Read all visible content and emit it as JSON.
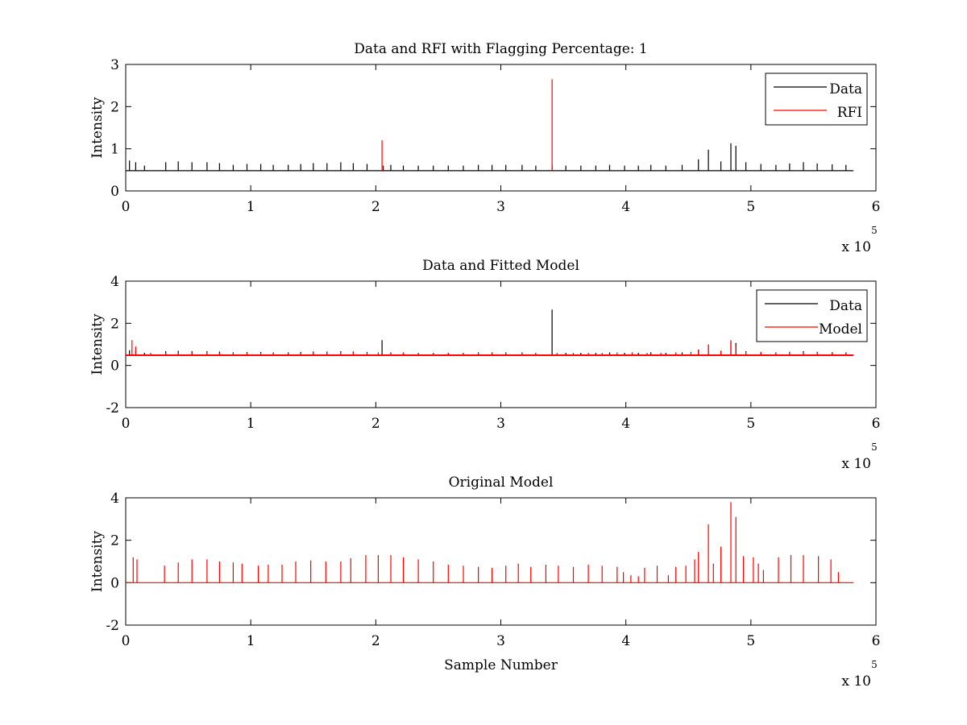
{
  "figure": {
    "background": "#ffffff"
  },
  "chart_data": [
    {
      "type": "line",
      "title": "Data and RFI with Flagging Percentage: 1",
      "xlabel": "",
      "ylabel": "Intensity",
      "xlim": [
        0,
        600000
      ],
      "ylim": [
        0,
        3
      ],
      "xticks": [
        0,
        1,
        2,
        3,
        4,
        5,
        6
      ],
      "yticks": [
        0,
        1,
        2,
        3
      ],
      "x_multiplier": "x 10",
      "x_multiplier_exp": "5",
      "legend_position": "top-right",
      "series": [
        {
          "name": "Data",
          "color": "#000000",
          "baseline": 0.48,
          "end_x": 582000,
          "spikes": [
            [
              3000,
              0.72
            ],
            [
              8000,
              0.68
            ],
            [
              15000,
              0.6
            ],
            [
              32000,
              0.68
            ],
            [
              42000,
              0.7
            ],
            [
              53000,
              0.68
            ],
            [
              65000,
              0.68
            ],
            [
              75000,
              0.66
            ],
            [
              86000,
              0.62
            ],
            [
              97000,
              0.64
            ],
            [
              108000,
              0.64
            ],
            [
              118000,
              0.62
            ],
            [
              130000,
              0.62
            ],
            [
              140000,
              0.64
            ],
            [
              150000,
              0.66
            ],
            [
              161000,
              0.66
            ],
            [
              172000,
              0.68
            ],
            [
              182000,
              0.66
            ],
            [
              193000,
              0.64
            ],
            [
              206000,
              0.6
            ],
            [
              212000,
              0.62
            ],
            [
              222000,
              0.6
            ],
            [
              234000,
              0.6
            ],
            [
              246000,
              0.6
            ],
            [
              258000,
              0.6
            ],
            [
              270000,
              0.6
            ],
            [
              282000,
              0.62
            ],
            [
              293000,
              0.62
            ],
            [
              304000,
              0.62
            ],
            [
              317000,
              0.62
            ],
            [
              328000,
              0.6
            ],
            [
              341000,
              0.62
            ],
            [
              352000,
              0.6
            ],
            [
              364000,
              0.6
            ],
            [
              376000,
              0.6
            ],
            [
              387000,
              0.62
            ],
            [
              399000,
              0.6
            ],
            [
              410000,
              0.6
            ],
            [
              420000,
              0.62
            ],
            [
              432000,
              0.6
            ],
            [
              445000,
              0.62
            ],
            [
              458000,
              0.75
            ],
            [
              466000,
              0.98
            ],
            [
              476000,
              0.7
            ],
            [
              484000,
              1.13
            ],
            [
              488000,
              1.07
            ],
            [
              496000,
              0.68
            ],
            [
              508000,
              0.64
            ],
            [
              520000,
              0.62
            ],
            [
              531000,
              0.65
            ],
            [
              542000,
              0.68
            ],
            [
              553000,
              0.65
            ],
            [
              565000,
              0.63
            ],
            [
              576000,
              0.62
            ]
          ]
        },
        {
          "name": "RFI",
          "color": "#ff0000",
          "spikes": [
            [
              205000,
              1.2
            ],
            [
              341000,
              2.65
            ]
          ]
        }
      ]
    },
    {
      "type": "line",
      "title": "Data and Fitted Model",
      "xlabel": "",
      "ylabel": "Intensity",
      "xlim": [
        0,
        600000
      ],
      "ylim": [
        -2,
        4
      ],
      "xticks": [
        0,
        1,
        2,
        3,
        4,
        5,
        6
      ],
      "yticks": [
        -2,
        0,
        2,
        4
      ],
      "x_multiplier": "x 10",
      "x_multiplier_exp": "5",
      "legend_position": "top-right",
      "series": [
        {
          "name": "Data",
          "color": "#000000",
          "baseline": 0.48,
          "end_x": 582000,
          "spikes": [
            [
              3000,
              0.72
            ],
            [
              8000,
              0.68
            ],
            [
              15000,
              0.6
            ],
            [
              32000,
              0.68
            ],
            [
              42000,
              0.7
            ],
            [
              53000,
              0.68
            ],
            [
              65000,
              0.68
            ],
            [
              75000,
              0.66
            ],
            [
              86000,
              0.62
            ],
            [
              97000,
              0.64
            ],
            [
              108000,
              0.64
            ],
            [
              118000,
              0.62
            ],
            [
              130000,
              0.62
            ],
            [
              140000,
              0.64
            ],
            [
              150000,
              0.66
            ],
            [
              161000,
              0.66
            ],
            [
              172000,
              0.68
            ],
            [
              182000,
              0.66
            ],
            [
              193000,
              0.64
            ],
            [
              205000,
              1.2
            ],
            [
              212000,
              0.62
            ],
            [
              222000,
              0.6
            ],
            [
              234000,
              0.6
            ],
            [
              246000,
              0.6
            ],
            [
              258000,
              0.6
            ],
            [
              270000,
              0.6
            ],
            [
              282000,
              0.62
            ],
            [
              293000,
              0.62
            ],
            [
              304000,
              0.62
            ],
            [
              317000,
              0.62
            ],
            [
              328000,
              0.6
            ],
            [
              341000,
              2.65
            ],
            [
              352000,
              0.6
            ],
            [
              364000,
              0.6
            ],
            [
              376000,
              0.6
            ],
            [
              387000,
              0.62
            ],
            [
              399000,
              0.6
            ],
            [
              410000,
              0.6
            ],
            [
              420000,
              0.62
            ],
            [
              432000,
              0.6
            ],
            [
              445000,
              0.62
            ],
            [
              458000,
              0.75
            ],
            [
              466000,
              0.98
            ],
            [
              476000,
              0.7
            ],
            [
              484000,
              1.13
            ],
            [
              488000,
              1.07
            ],
            [
              496000,
              0.68
            ],
            [
              508000,
              0.64
            ],
            [
              520000,
              0.62
            ],
            [
              531000,
              0.65
            ],
            [
              542000,
              0.68
            ],
            [
              553000,
              0.65
            ],
            [
              565000,
              0.63
            ],
            [
              576000,
              0.62
            ]
          ]
        },
        {
          "name": "Model",
          "color": "#ff0000",
          "baseline": 0.5,
          "end_x": 582000,
          "spikes": [
            [
              5000,
              1.2
            ],
            [
              8000,
              0.9
            ],
            [
              20000,
              0.6
            ],
            [
              32000,
              0.6
            ],
            [
              42000,
              0.62
            ],
            [
              53000,
              0.62
            ],
            [
              65000,
              0.62
            ],
            [
              75000,
              0.6
            ],
            [
              86000,
              0.6
            ],
            [
              97000,
              0.6
            ],
            [
              108000,
              0.6
            ],
            [
              118000,
              0.62
            ],
            [
              130000,
              0.6
            ],
            [
              140000,
              0.6
            ],
            [
              150000,
              0.62
            ],
            [
              161000,
              0.62
            ],
            [
              172000,
              0.62
            ],
            [
              182000,
              0.62
            ],
            [
              193000,
              0.6
            ],
            [
              202000,
              0.62
            ],
            [
              212000,
              0.62
            ],
            [
              222000,
              0.62
            ],
            [
              234000,
              0.6
            ],
            [
              246000,
              0.6
            ],
            [
              258000,
              0.6
            ],
            [
              270000,
              0.6
            ],
            [
              282000,
              0.6
            ],
            [
              293000,
              0.6
            ],
            [
              304000,
              0.6
            ],
            [
              317000,
              0.6
            ],
            [
              328000,
              0.6
            ],
            [
              345000,
              0.6
            ],
            [
              358000,
              0.6
            ],
            [
              370000,
              0.6
            ],
            [
              381000,
              0.6
            ],
            [
              393000,
              0.62
            ],
            [
              405000,
              0.62
            ],
            [
              417000,
              0.6
            ],
            [
              428000,
              0.6
            ],
            [
              440000,
              0.62
            ],
            [
              452000,
              0.64
            ],
            [
              458000,
              0.75
            ],
            [
              466000,
              1.0
            ],
            [
              476000,
              0.7
            ],
            [
              484000,
              1.2
            ],
            [
              488000,
              0.95
            ],
            [
              496000,
              0.65
            ],
            [
              508000,
              0.64
            ],
            [
              520000,
              0.62
            ],
            [
              531000,
              0.62
            ],
            [
              542000,
              0.62
            ],
            [
              553000,
              0.62
            ],
            [
              565000,
              0.62
            ],
            [
              576000,
              0.62
            ]
          ]
        }
      ]
    },
    {
      "type": "line",
      "title": "Original Model",
      "xlabel": "Sample Number",
      "ylabel": "Intensity",
      "xlim": [
        0,
        600000
      ],
      "ylim": [
        -2,
        4
      ],
      "xticks": [
        0,
        1,
        2,
        3,
        4,
        5,
        6
      ],
      "yticks": [
        -2,
        0,
        2,
        4
      ],
      "x_multiplier": "x 10",
      "x_multiplier_exp": "5",
      "series": [
        {
          "name": "",
          "color": "#ff0000",
          "baseline": 0.0,
          "end_x": 582000,
          "spikes": [
            [
              6000,
              1.2
            ],
            [
              9000,
              1.1
            ],
            [
              31000,
              0.8
            ],
            [
              42000,
              0.95
            ],
            [
              53000,
              1.1
            ],
            [
              65000,
              1.1
            ],
            [
              75000,
              1.0
            ],
            [
              86000,
              0.95
            ],
            [
              93000,
              0.9
            ],
            [
              106000,
              0.8
            ],
            [
              114000,
              0.85
            ],
            [
              125000,
              0.85
            ],
            [
              136000,
              1.0
            ],
            [
              148000,
              1.05
            ],
            [
              160000,
              1.0
            ],
            [
              172000,
              1.0
            ],
            [
              180000,
              1.15
            ],
            [
              192000,
              1.3
            ],
            [
              202000,
              1.3
            ],
            [
              212000,
              1.3
            ],
            [
              222000,
              1.2
            ],
            [
              234000,
              1.1
            ],
            [
              246000,
              1.0
            ],
            [
              258000,
              0.85
            ],
            [
              270000,
              0.8
            ],
            [
              282000,
              0.75
            ],
            [
              293000,
              0.7
            ],
            [
              304000,
              0.8
            ],
            [
              314000,
              0.9
            ],
            [
              324000,
              0.75
            ],
            [
              336000,
              0.85
            ],
            [
              346000,
              0.8
            ],
            [
              358000,
              0.75
            ],
            [
              370000,
              0.85
            ],
            [
              381000,
              0.8
            ],
            [
              393000,
              0.75
            ],
            [
              398000,
              0.5
            ],
            [
              404000,
              0.35
            ],
            [
              410000,
              0.3
            ],
            [
              415000,
              0.7
            ],
            [
              425000,
              0.8
            ],
            [
              434000,
              0.35
            ],
            [
              440000,
              0.75
            ],
            [
              448000,
              0.8
            ],
            [
              455000,
              1.1
            ],
            [
              458000,
              1.45
            ],
            [
              466000,
              2.75
            ],
            [
              470000,
              0.9
            ],
            [
              476000,
              1.7
            ],
            [
              484000,
              3.8
            ],
            [
              488000,
              3.1
            ],
            [
              494000,
              1.25
            ],
            [
              502000,
              1.2
            ],
            [
              506000,
              0.9
            ],
            [
              510000,
              0.6
            ],
            [
              522000,
              1.2
            ],
            [
              532000,
              1.3
            ],
            [
              542000,
              1.3
            ],
            [
              554000,
              1.25
            ],
            [
              564000,
              1.1
            ],
            [
              570000,
              0.5
            ]
          ]
        }
      ]
    }
  ]
}
